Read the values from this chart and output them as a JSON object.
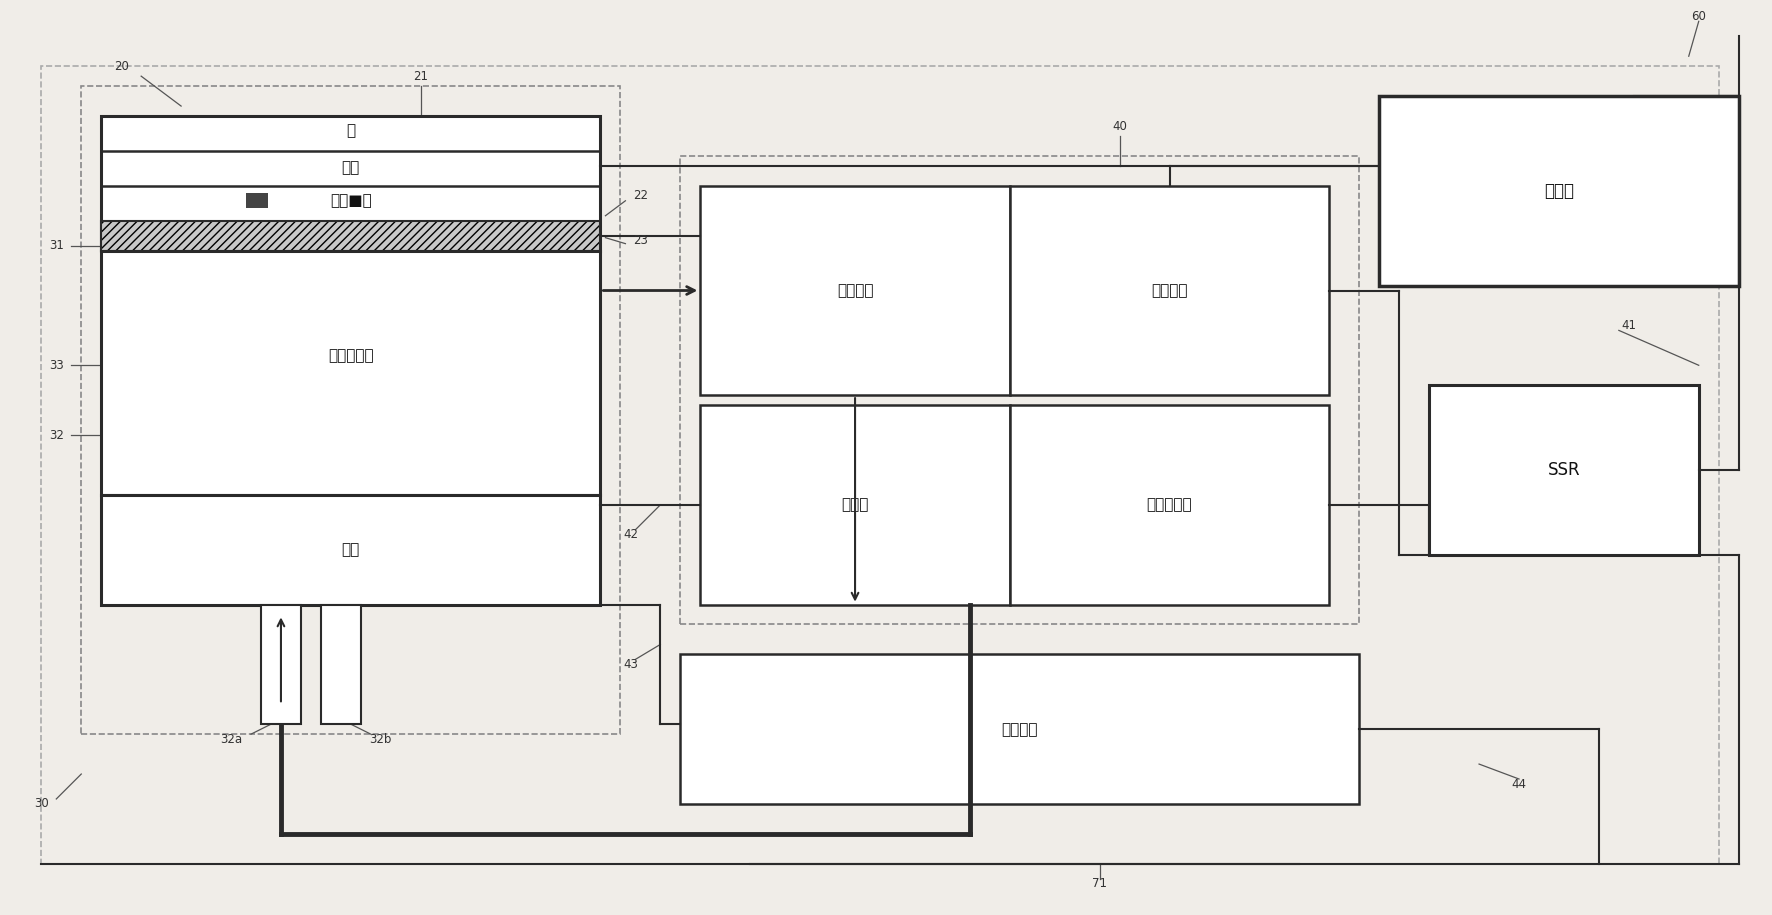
{
  "bg_color": "#f0ede8",
  "line_color": "#2a2a2a",
  "dashed_color": "#888888",
  "font_color": "#111111",
  "labels": {
    "mem": "膜",
    "substrate": "基板",
    "cooling_bed": "冷却■床",
    "peltier": "珀尔帖元件",
    "water_tank": "水筱",
    "coolant_pump": "冷却剂泵",
    "coolant_tank": "冷却剂筱",
    "radiator": "散热器",
    "radiator_fan": "散热器风扇",
    "duct_fan": "管道风扇",
    "controller": "控制器",
    "ssr": "SSR"
  },
  "ref_nums": {
    "n20": "20",
    "n21": "21",
    "n22": "22",
    "n23": "23",
    "n30": "30",
    "n31": "31",
    "n32": "32",
    "n32a": "32a",
    "n32b": "32b",
    "n33": "33",
    "n40": "40",
    "n41": "41",
    "n42": "42",
    "n43": "43",
    "n44": "44",
    "n60": "60",
    "n71": "71"
  }
}
